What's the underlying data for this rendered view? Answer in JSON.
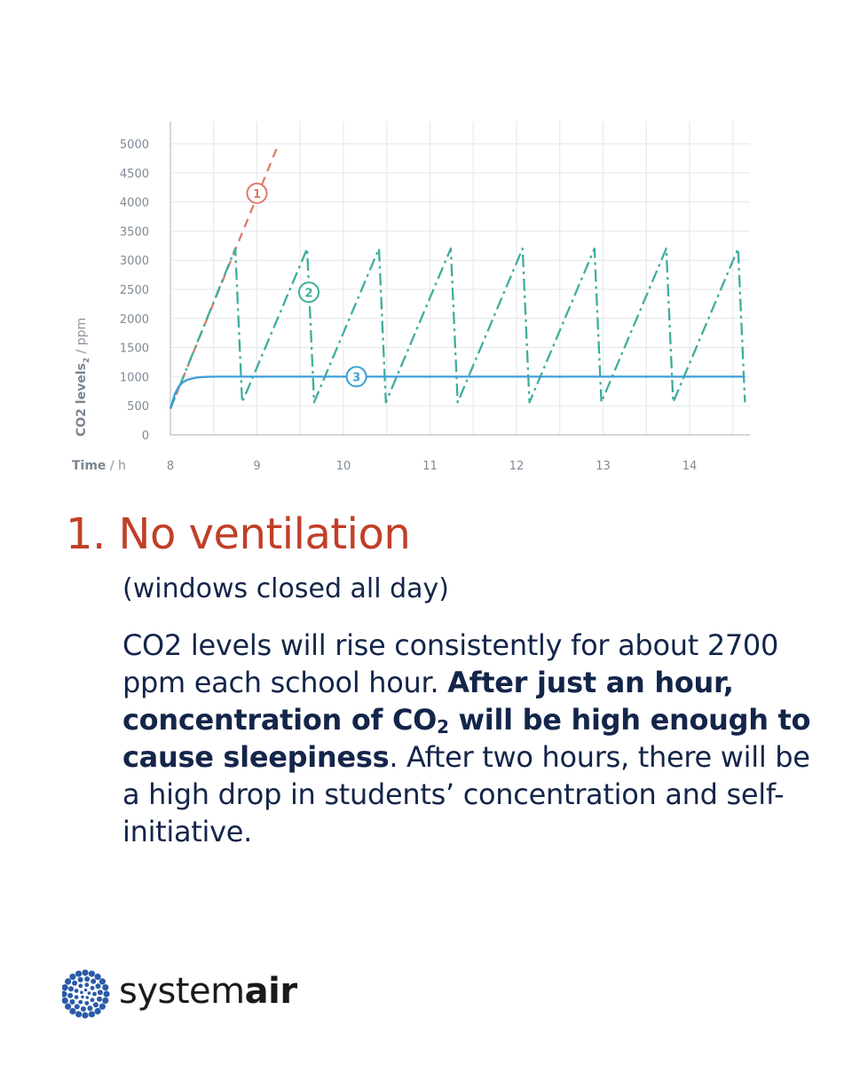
{
  "chart_data": {
    "type": "line",
    "xlabel": {
      "bold": "Time",
      "rest": " / h"
    },
    "ylabel": {
      "bold": "CO2 levels",
      "sub": "2",
      "rest": " / ppm"
    },
    "x_ticks": [
      "8",
      "9",
      "10",
      "11",
      "12",
      "13",
      "14"
    ],
    "y_ticks": [
      "0",
      "500",
      "1000",
      "1500",
      "2000",
      "2500",
      "3000",
      "3500",
      "4000",
      "4500",
      "5000"
    ],
    "xlim": [
      7.95,
      14.65
    ],
    "ylim": [
      0,
      5000
    ],
    "grid": true,
    "series": [
      {
        "marker": "1",
        "color": "#e07a6b",
        "style": "dashed",
        "x": [
          8.0,
          9.25
        ],
        "y": [
          450,
          5000
        ]
      },
      {
        "marker": "2",
        "color": "#3fae9c",
        "style": "dashdot",
        "x": [
          8.0,
          8.75,
          8.83,
          9.58,
          9.66,
          10.41,
          10.49,
          11.24,
          11.32,
          12.07,
          12.15,
          12.9,
          12.98,
          13.73,
          13.81,
          14.56,
          14.64
        ],
        "y": [
          450,
          3200,
          560,
          3200,
          560,
          3200,
          560,
          3200,
          560,
          3200,
          560,
          3200,
          560,
          3200,
          560,
          3200,
          560
        ]
      },
      {
        "marker": "3",
        "color": "#3b9fd6",
        "style": "solid",
        "x": [
          8.0,
          8.05,
          8.1,
          8.15,
          8.2,
          8.3,
          8.4,
          8.5,
          8.6,
          8.8,
          9.0,
          10.0,
          11.0,
          12.0,
          13.0,
          14.0,
          14.64
        ],
        "y": [
          450,
          700,
          840,
          910,
          950,
          985,
          995,
          1000,
          1000,
          1000,
          1000,
          1000,
          1000,
          1000,
          1000,
          1000,
          1000
        ]
      }
    ],
    "markers": [
      {
        "label": "1",
        "color": "#e07a6b",
        "x": 9.0,
        "y": 4150
      },
      {
        "label": "2",
        "color": "#3fae9c",
        "x": 9.6,
        "y": 2450
      },
      {
        "label": "3",
        "color": "#3b9fd6",
        "x": 10.15,
        "y": 1000
      }
    ]
  },
  "text": {
    "heading": "1. No ventilation",
    "subheading": "(windows closed all day)",
    "body_part1": "CO2 levels will rise consistently for about 2700 ppm each school hour. ",
    "body_bold1": "After just an hour, concentration of CO",
    "body_bold_sub": "2",
    "body_bold2": " will be high enough to cause sleepiness",
    "body_part2": ". After two hours, there will be a high drop in students’ concentration and self-initiative."
  },
  "logo": {
    "regular": "system",
    "bold": "air",
    "color": "#2a5ba8"
  }
}
